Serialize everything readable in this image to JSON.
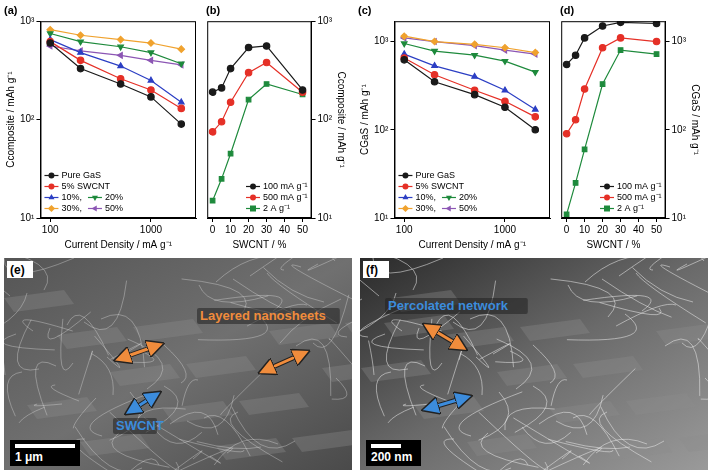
{
  "chart_data": [
    {
      "type": "line",
      "panel": "(a)",
      "log": true,
      "grid": false,
      "legend": "lower left",
      "x_label": "Current Density / mA g⁻¹",
      "y_label": "Ccomposite / mAh g⁻¹",
      "x": [
        100,
        200,
        500,
        1000,
        2000
      ],
      "xlim": [
        80,
        2800
      ],
      "xticks": [
        100,
        1000
      ],
      "ylim": [
        10,
        1000
      ],
      "yticks": [
        {
          "value": 10,
          "label": "10¹"
        },
        {
          "value": 100,
          "label": "10²"
        },
        {
          "value": 1000,
          "label": "10³"
        }
      ],
      "series": [
        {
          "name": "Pure GaS",
          "color": "#1a1a1a",
          "marker": "circle",
          "line_style": "solid",
          "values": [
            600,
            330,
            230,
            170,
            90
          ]
        },
        {
          "name": "5% SWCNT",
          "color": "#e53027",
          "marker": "circle",
          "line_style": "solid",
          "values": [
            620,
            400,
            260,
            200,
            130
          ]
        },
        {
          "name": "10%,",
          "color": "#2c3fc4",
          "marker": "triangle",
          "line_style": "solid",
          "values": [
            650,
            480,
            350,
            250,
            150
          ]
        },
        {
          "name": "20%",
          "color": "#1e8a3c",
          "marker": "triangle-down",
          "line_style": "solid",
          "values": [
            750,
            620,
            550,
            480,
            370
          ]
        },
        {
          "name": "30%,",
          "color": "#f0a22e",
          "marker": "diamond",
          "line_style": "solid",
          "values": [
            820,
            720,
            650,
            600,
            520
          ]
        },
        {
          "name": "50%",
          "color": "#8c56b4",
          "marker": "triangle-left",
          "line_style": "solid",
          "values": [
            560,
            500,
            450,
            400,
            360
          ]
        }
      ]
    },
    {
      "type": "line",
      "panel": "(b)",
      "log": "y",
      "grid": false,
      "legend": "lower right",
      "x_label": "SWCNT / %",
      "y_label": "Ccomposite / mAh g⁻¹",
      "x": [
        0,
        5,
        10,
        20,
        30,
        50
      ],
      "xlim": [
        -3,
        55
      ],
      "xticks": [
        0,
        10,
        20,
        30,
        40,
        50
      ],
      "ylim": [
        10,
        1000
      ],
      "yticks": [
        {
          "value": 10,
          "label": "10¹"
        },
        {
          "value": 100,
          "label": "10²"
        },
        {
          "value": 1000,
          "label": "10³"
        }
      ],
      "series": [
        {
          "name": "100 mA g⁻¹",
          "color": "#1a1a1a",
          "marker": "circle",
          "line_style": "solid",
          "values": [
            190,
            210,
            330,
            540,
            560,
            200
          ]
        },
        {
          "name": "500 mA g⁻¹",
          "color": "#e53027",
          "marker": "circle",
          "line_style": "solid",
          "values": [
            75,
            95,
            150,
            300,
            380,
            190
          ]
        },
        {
          "name": "2 A g⁻¹",
          "color": "#1e8a3c",
          "marker": "square",
          "line_style": "solid",
          "values": [
            15,
            25,
            45,
            160,
            230,
            180
          ]
        }
      ]
    },
    {
      "type": "line",
      "panel": "(c)",
      "log": true,
      "grid": false,
      "legend": "lower left",
      "x_label": "Current Density / mA g⁻¹",
      "y_label": "CGaS / mAh g⁻¹",
      "x": [
        100,
        200,
        500,
        1000,
        2000
      ],
      "xlim": [
        80,
        2800
      ],
      "xticks": [
        100,
        1000
      ],
      "ylim": [
        10,
        1700
      ],
      "yticks": [
        {
          "value": 10,
          "label": "10¹"
        },
        {
          "value": 100,
          "label": "10²"
        },
        {
          "value": 1000,
          "label": "10³"
        }
      ],
      "series": [
        {
          "name": "Pure GaS",
          "color": "#1a1a1a",
          "marker": "circle",
          "line_style": "solid",
          "values": [
            620,
            350,
            250,
            180,
            100
          ]
        },
        {
          "name": "5% SWCNT",
          "color": "#e53027",
          "marker": "circle",
          "line_style": "solid",
          "values": [
            650,
            420,
            280,
            210,
            140
          ]
        },
        {
          "name": "10%,",
          "color": "#2c3fc4",
          "marker": "triangle",
          "line_style": "solid",
          "values": [
            720,
            530,
            400,
            280,
            170
          ]
        },
        {
          "name": "20%",
          "color": "#1e8a3c",
          "marker": "triangle-down",
          "line_style": "solid",
          "values": [
            950,
            780,
            700,
            600,
            450
          ]
        },
        {
          "name": "30%,",
          "color": "#f0a22e",
          "marker": "diamond",
          "line_style": "solid",
          "values": [
            1150,
            1000,
            930,
            850,
            750
          ]
        },
        {
          "name": "50%",
          "color": "#8c56b4",
          "marker": "triangle-left",
          "line_style": "solid",
          "values": [
            1100,
            1000,
            900,
            800,
            720
          ]
        }
      ]
    },
    {
      "type": "line",
      "panel": "(d)",
      "log": "y",
      "grid": false,
      "legend": "lower right",
      "x_label": "SWCNT / %",
      "y_label": "CGaS / mAh g⁻¹",
      "x": [
        0,
        5,
        10,
        20,
        30,
        50
      ],
      "xlim": [
        -3,
        55
      ],
      "xticks": [
        0,
        10,
        20,
        30,
        40,
        50
      ],
      "ylim": [
        10,
        1700
      ],
      "yticks": [
        {
          "value": 10,
          "label": "10¹"
        },
        {
          "value": 100,
          "label": "10²"
        },
        {
          "value": 1000,
          "label": "10³"
        }
      ],
      "series": [
        {
          "name": "100 mA g⁻¹",
          "color": "#1a1a1a",
          "marker": "circle",
          "line_style": "solid",
          "values": [
            550,
            700,
            1100,
            1500,
            1650,
            1600
          ]
        },
        {
          "name": "500 mA g⁻¹",
          "color": "#e53027",
          "marker": "circle",
          "line_style": "solid",
          "values": [
            90,
            130,
            290,
            850,
            1100,
            1000
          ]
        },
        {
          "name": "2 A g⁻¹",
          "color": "#1e8a3c",
          "marker": "square",
          "line_style": "solid",
          "values": [
            11,
            25,
            60,
            330,
            800,
            720
          ]
        }
      ]
    }
  ],
  "micrographs": [
    {
      "panel": "(e)",
      "scale_bar": "1 μm",
      "labels": [
        {
          "text": "Layered nanosheets",
          "color": "#f08c3c"
        },
        {
          "text": "SWCNT",
          "color": "#3c8cdc"
        }
      ]
    },
    {
      "panel": "(f)",
      "scale_bar": "200 nm",
      "labels": [
        {
          "text": "Percolated network",
          "color": "#3c8cdc"
        },
        {
          "text": "",
          "color": "#f08c3c"
        }
      ]
    }
  ]
}
